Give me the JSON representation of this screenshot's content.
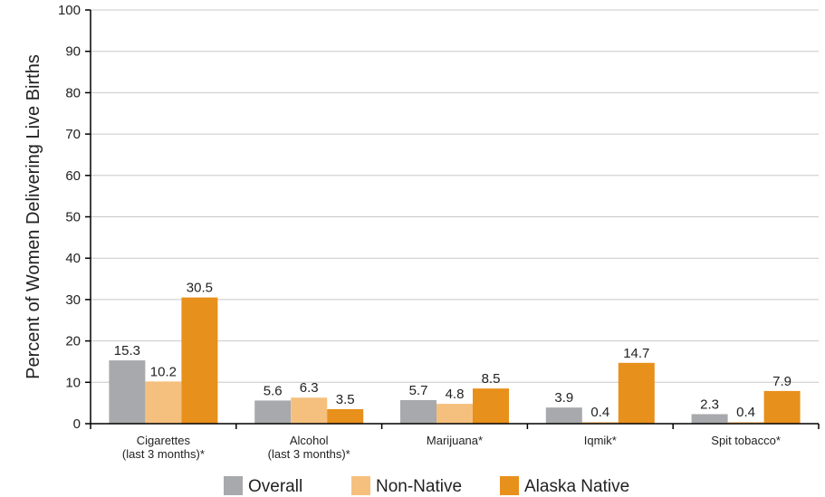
{
  "chart_data": {
    "type": "bar",
    "title": "",
    "xlabel": "",
    "ylabel": "Percent of Women Delivering Live Births",
    "ylim": [
      0,
      100
    ],
    "yticks": [
      0,
      10,
      20,
      30,
      40,
      50,
      60,
      70,
      80,
      90,
      100
    ],
    "grid": true,
    "legend_position": "bottom",
    "categories": [
      [
        "Cigarettes",
        "(last 3 months)*"
      ],
      [
        "Alcohol",
        "(last 3 months)*"
      ],
      [
        "Marijuana*"
      ],
      [
        "Iqmik*"
      ],
      [
        "Spit tobacco*"
      ]
    ],
    "series": [
      {
        "name": "Overall",
        "color": "#a7a9ac",
        "values": [
          15.3,
          5.6,
          5.7,
          3.9,
          2.3
        ]
      },
      {
        "name": "Non-Native",
        "color": "#f5c07e",
        "values": [
          10.2,
          6.3,
          4.8,
          0.4,
          0.4
        ]
      },
      {
        "name": "Alaska Native",
        "color": "#e8901c",
        "values": [
          30.5,
          3.5,
          8.5,
          14.7,
          7.9
        ]
      }
    ],
    "data_labels": [
      [
        "15.3",
        "10.2",
        "30.5"
      ],
      [
        "5.6",
        "6.3",
        "3.5"
      ],
      [
        "5.7",
        "4.8",
        "8.5"
      ],
      [
        "3.9",
        "0.4",
        "14.7"
      ],
      [
        "2.3",
        "0.4",
        "7.9"
      ]
    ]
  }
}
